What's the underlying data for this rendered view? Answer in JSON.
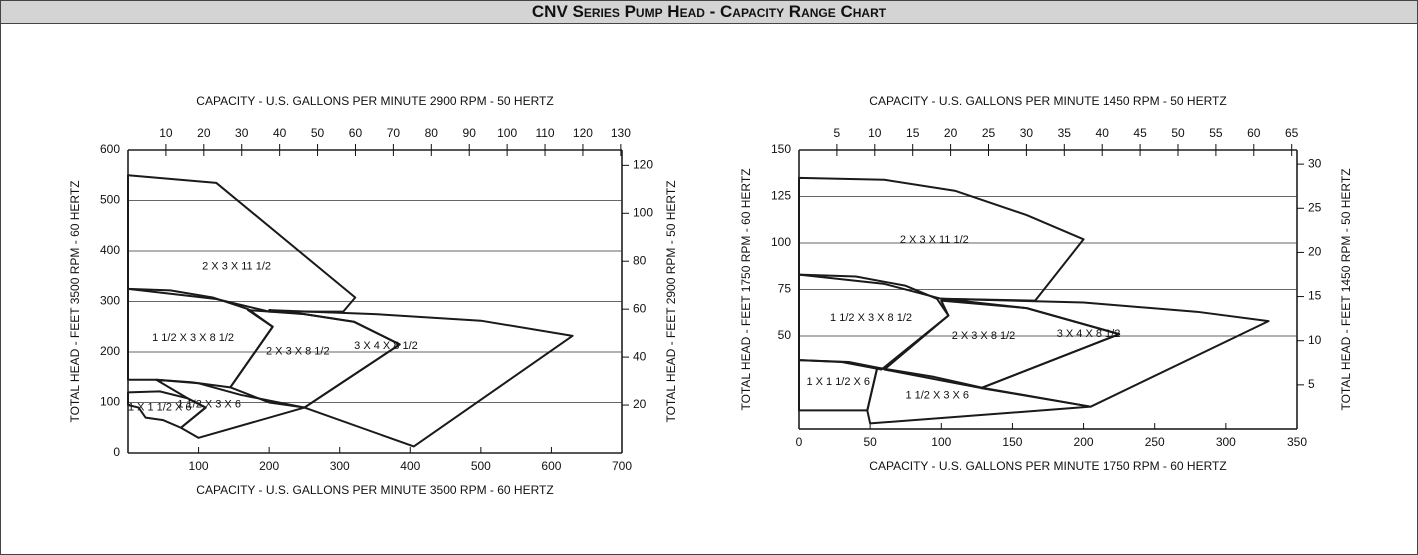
{
  "title": "CNV Series Pump Head - Capacity Range Chart",
  "chart_data": [
    {
      "type": "range",
      "x2label": "CAPACITY - U.S. GALLONS PER MINUTE  2900 RPM - 50 HERTZ",
      "xlabel": "CAPACITY - U.S. GALLONS PER MINUTE  3500 RPM - 60 HERTZ",
      "ylabel": "TOTAL HEAD - FEET  3500 RPM - 60 HERTZ",
      "y2label": "TOTAL HEAD - FEET  2900 RPM - 50 HERTZ",
      "xlim": [
        0,
        700
      ],
      "xticks": [
        100,
        200,
        300,
        400,
        500,
        600,
        700
      ],
      "x2lim": [
        0,
        130.3
      ],
      "x2ticks": [
        10,
        20,
        30,
        40,
        50,
        60,
        70,
        80,
        90,
        100,
        110,
        120,
        130
      ],
      "ylim": [
        0,
        600
      ],
      "yticks": [
        0,
        100,
        200,
        300,
        400,
        500,
        600
      ],
      "y2lim": [
        0,
        126.4
      ],
      "y2ticks": [
        20,
        40,
        60,
        80,
        100,
        120
      ],
      "grid": true,
      "color": "#1a1a1a",
      "series": [
        {
          "name": "2 X 3 X 11 1/2",
          "x": [
            0,
            125,
            322,
            305,
            200,
            125,
            0
          ],
          "y": [
            550,
            535,
            308,
            280,
            280,
            305,
            325
          ]
        },
        {
          "name": "1 1/2 X 3 X 8 1/2",
          "x": [
            0,
            60,
            120,
            170,
            205,
            145,
            90,
            40,
            0
          ],
          "y": [
            325,
            322,
            308,
            285,
            250,
            130,
            140,
            145,
            145
          ]
        },
        {
          "name": "2 X 3 X 8 1/2",
          "x": [
            170,
            250,
            320,
            385,
            250,
            200,
            145,
            205
          ],
          "y": [
            283,
            275,
            260,
            215,
            90,
            100,
            130,
            250
          ]
        },
        {
          "name": "3 X 4 X 8 1/2",
          "x": [
            200,
            350,
            500,
            630,
            405,
            250,
            385,
            320,
            250
          ],
          "y": [
            283,
            275,
            262,
            232,
            13,
            90,
            215,
            260,
            275
          ]
        },
        {
          "name": "1 X 1 1/2 X 6",
          "x": [
            0,
            45,
            85,
            110,
            75,
            50,
            25,
            15,
            0
          ],
          "y": [
            120,
            122,
            108,
            90,
            50,
            65,
            70,
            90,
            95
          ]
        },
        {
          "name": "1 1/2 X 3 X 6",
          "x": [
            40,
            100,
            160,
            250,
            100,
            75,
            110,
            85
          ],
          "y": [
            145,
            138,
            115,
            90,
            30,
            50,
            90,
            108
          ]
        }
      ]
    },
    {
      "type": "range",
      "x2label": "CAPACITY - U.S. GALLONS PER MINUTE  1450 RPM - 50 HERTZ",
      "xlabel": "CAPACITY - U.S. GALLONS PER MINUTE  1750 RPM - 60 HERTZ",
      "ylabel": "TOTAL HEAD - FEET 1750 RPM - 60 HERTZ",
      "y2label": "TOTAL HEAD - FEET 1450 RPM - 50 HERTZ",
      "xlim": [
        0,
        350
      ],
      "xticks": [
        0,
        50,
        100,
        150,
        200,
        250,
        300,
        350
      ],
      "x2lim": [
        0,
        65.7
      ],
      "x2ticks": [
        5,
        10,
        15,
        20,
        25,
        30,
        35,
        40,
        45,
        50,
        55,
        60,
        65
      ],
      "ylim": [
        0,
        150
      ],
      "yticks": [
        50,
        75,
        100,
        125,
        150
      ],
      "y2lim": [
        0,
        31.6
      ],
      "y2ticks": [
        5,
        10,
        15,
        20,
        25,
        30
      ],
      "grid": true,
      "color": "#1a1a1a",
      "series": [
        {
          "name": "2 X 3 X 11 1/2",
          "x": [
            0,
            60,
            110,
            160,
            200,
            166,
            100,
            60,
            0
          ],
          "y": [
            135,
            134,
            128,
            115,
            102,
            69,
            70,
            78,
            83
          ]
        },
        {
          "name": "1 1/2 X 3 X 8 1/2",
          "x": [
            0,
            40,
            75,
            97,
            105,
            58,
            30,
            0
          ],
          "y": [
            83,
            82,
            77,
            70,
            61,
            32,
            36,
            37
          ]
        },
        {
          "name": "2 X 3 X 8 1/2",
          "x": [
            100,
            160,
            225,
            128,
            60,
            105
          ],
          "y": [
            69,
            65,
            51,
            22,
            32,
            61
          ]
        },
        {
          "name": "3 X 4 X 8 1/2",
          "x": [
            100,
            200,
            280,
            330,
            205,
            128,
            225,
            160
          ],
          "y": [
            70,
            68,
            63,
            58,
            12,
            22,
            51,
            65
          ]
        },
        {
          "name": "1 X 1 1/2 X 6",
          "x": [
            0,
            35,
            55,
            48,
            0
          ],
          "y": [
            37,
            36,
            33,
            10,
            10
          ]
        },
        {
          "name": "1 1/2 X 3 X 6",
          "x": [
            55,
            95,
            130,
            205,
            50,
            48
          ],
          "y": [
            33,
            28,
            22,
            12,
            3,
            10
          ]
        }
      ]
    }
  ]
}
